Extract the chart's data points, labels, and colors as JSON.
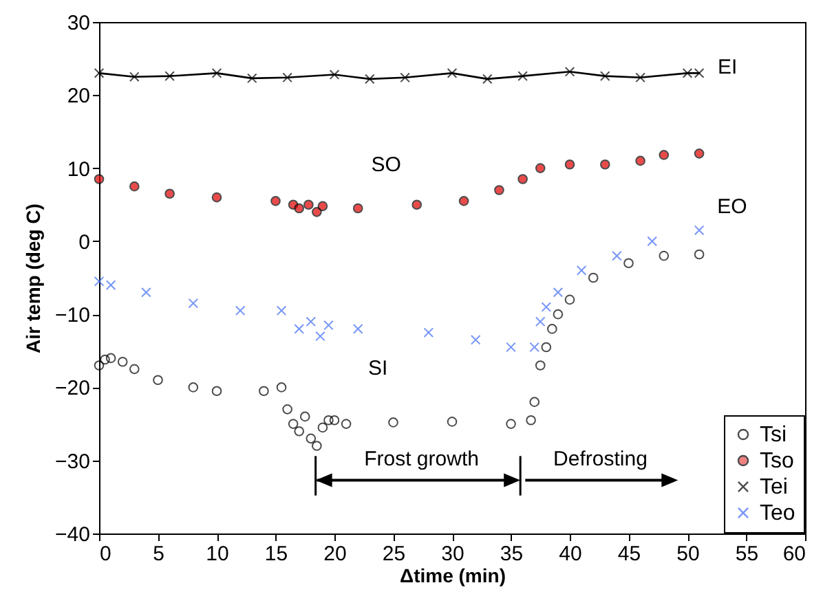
{
  "chart_data": {
    "type": "scatter",
    "xlabel": "Δtime (min)",
    "ylabel": "Air temp (deg C)",
    "xlim": [
      0,
      60
    ],
    "xticks": [
      0,
      5,
      10,
      15,
      20,
      25,
      30,
      35,
      40,
      45,
      50,
      55,
      60
    ],
    "ylim": [
      -40,
      30
    ],
    "yticks": [
      -40,
      -30,
      -20,
      -10,
      0,
      10,
      20,
      30
    ],
    "grid": false,
    "legend": "bottom right",
    "series": [
      {
        "name": "Tsi",
        "color": "#000000",
        "marker": "circle",
        "x": [
          0,
          0.5,
          1,
          2,
          3,
          5,
          8,
          10,
          14,
          15.5,
          16,
          16.5,
          17,
          17.5,
          18,
          18.5,
          19,
          19.5,
          20,
          21,
          25,
          30,
          35,
          36.7,
          37,
          37.5,
          38,
          38.5,
          39,
          40,
          42,
          45,
          48,
          51
        ],
        "values": [
          -17,
          -16.2,
          -16,
          -16.5,
          -17.5,
          -19,
          -20,
          -20.5,
          -20.5,
          -20,
          -23,
          -25,
          -26,
          -24,
          -27,
          -28,
          -25.5,
          -24.5,
          -24.5,
          -25,
          -24.8,
          -24.7,
          -25,
          -24.5,
          -22,
          -17,
          -14.5,
          -12,
          -10,
          -8,
          -5,
          -3,
          -2,
          -1.8
        ]
      },
      {
        "name": "Tso",
        "color": "#e00000",
        "marker": "circle",
        "x": [
          0,
          3,
          6,
          10,
          15,
          16.5,
          17,
          17.8,
          18.5,
          19,
          22,
          27,
          31,
          34,
          36,
          37.5,
          40,
          43,
          46,
          48,
          51
        ],
        "values": [
          8.5,
          7.5,
          6.5,
          6,
          5.5,
          5,
          4.5,
          5,
          4,
          4.8,
          4.5,
          5,
          5.5,
          7,
          8.5,
          10,
          10.5,
          10.5,
          11,
          11.8,
          12
        ]
      },
      {
        "name": "Tei",
        "color": "#000000",
        "type": "line",
        "marker": "cross",
        "x": [
          0,
          3,
          6,
          10,
          13,
          16,
          20,
          23,
          26,
          30,
          33,
          36,
          40,
          43,
          46,
          50,
          51
        ],
        "values": [
          23,
          22.5,
          22.6,
          23,
          22.3,
          22.4,
          22.8,
          22.2,
          22.4,
          23,
          22.2,
          22.6,
          23.2,
          22.6,
          22.4,
          23,
          23
        ]
      },
      {
        "name": "Teo",
        "color": "#3d6af5",
        "marker": "cross",
        "x": [
          0,
          1,
          4,
          8,
          12,
          15.5,
          17,
          18,
          18.8,
          19.5,
          22,
          28,
          32,
          35,
          37,
          37.5,
          38,
          39,
          41,
          44,
          47,
          51
        ],
        "values": [
          -5.5,
          -6,
          -7,
          -8.5,
          -9.5,
          -9.5,
          -12,
          -11,
          -13,
          -11.5,
          -12,
          -12.5,
          -13.5,
          -14.5,
          -14.5,
          -11,
          -9,
          -7,
          -4,
          -2,
          0,
          1.5
        ]
      }
    ],
    "annotations": [
      "EI",
      "SO",
      "EO",
      "SI",
      "Frost growth",
      "Defrosting"
    ]
  }
}
